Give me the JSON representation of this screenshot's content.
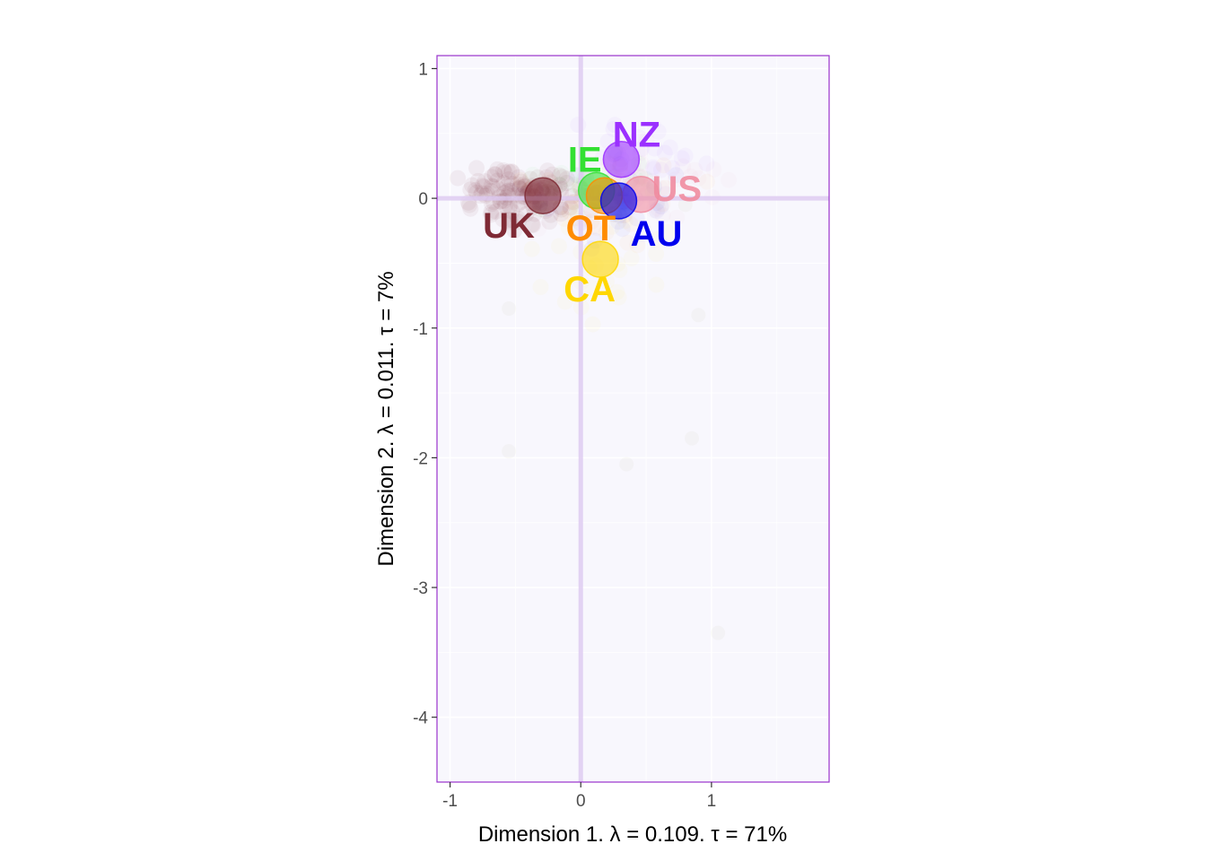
{
  "chart_data": {
    "type": "scatter",
    "title": "",
    "xlabel": "Dimension 1.   λ = 0.109.  τ = 71%",
    "ylabel": "Dimension 2.   λ = 0.011.  τ = 7%",
    "xlim": [
      -1.1,
      1.9
    ],
    "ylim": [
      -4.5,
      1.1
    ],
    "x_ticks": [
      -1,
      0,
      1
    ],
    "y_ticks": [
      1,
      0,
      -1,
      -2,
      -3,
      -4
    ],
    "x_tick_labels": [
      "-1",
      "0",
      "1"
    ],
    "y_tick_labels": [
      "1",
      "0",
      "-1",
      "-2",
      "-3",
      "-4"
    ],
    "grid": true,
    "legend": "none",
    "panel_background": "#f8f7fd",
    "panel_border": "#9932cc",
    "reference_line_color": "#dcc8f0",
    "groups": [
      {
        "name": "UK",
        "x": -0.29,
        "y": 0.02,
        "color": "#7f2a35"
      },
      {
        "name": "IE",
        "x": 0.12,
        "y": 0.06,
        "color": "#33e033"
      },
      {
        "name": "OT",
        "x": 0.18,
        "y": 0.02,
        "color": "#ff8c00"
      },
      {
        "name": "NZ",
        "x": 0.31,
        "y": 0.3,
        "color": "#9b30ff"
      },
      {
        "name": "US",
        "x": 0.46,
        "y": 0.03,
        "color": "#f08ca0"
      },
      {
        "name": "AU",
        "x": 0.29,
        "y": -0.02,
        "color": "#0000ee"
      },
      {
        "name": "CA",
        "x": 0.15,
        "y": -0.47,
        "color": "#ffd700"
      }
    ]
  }
}
